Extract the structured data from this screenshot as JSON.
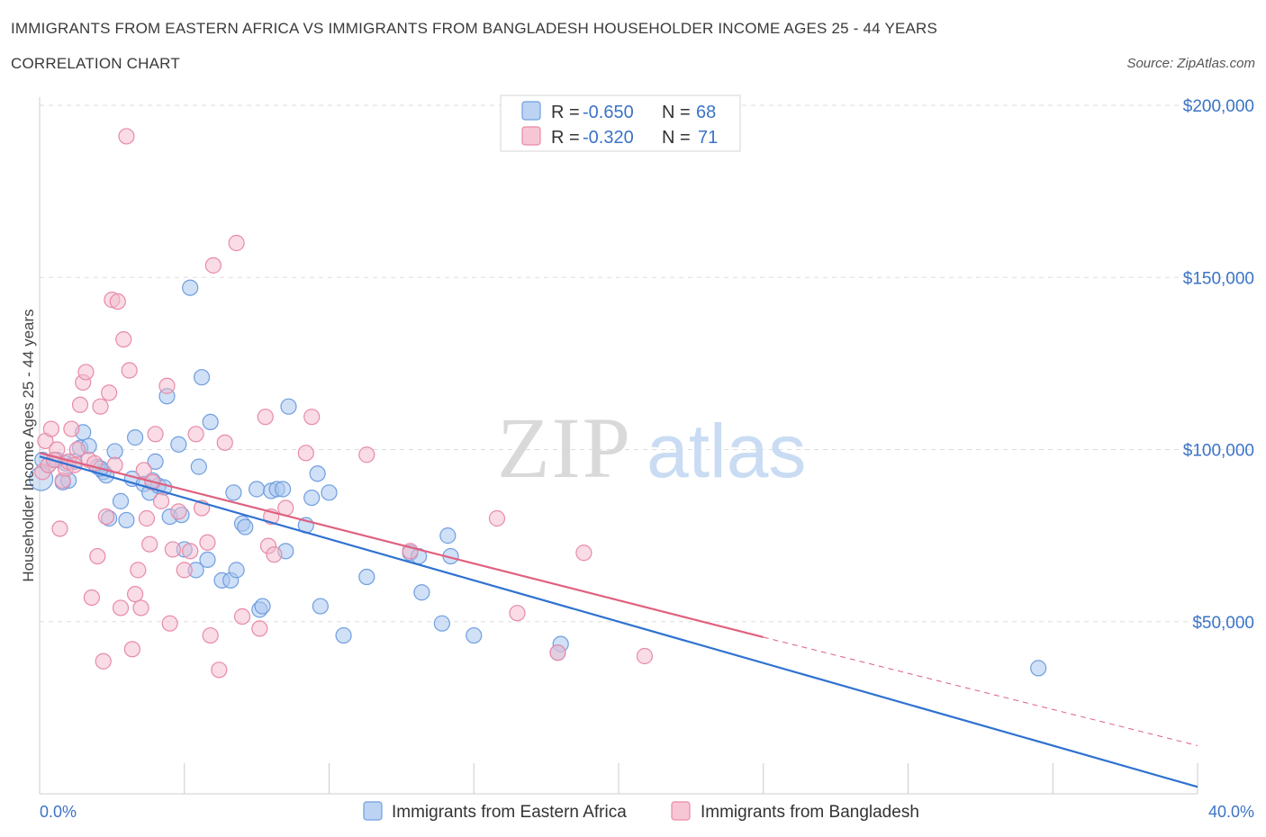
{
  "title": "IMMIGRANTS FROM EASTERN AFRICA VS IMMIGRANTS FROM BANGLADESH HOUSEHOLDER INCOME AGES 25 - 44 YEARS",
  "subtitle": "CORRELATION CHART",
  "source": "Source: ZipAtlas.com",
  "watermark": {
    "zip": "ZIP",
    "atlas": "atlas"
  },
  "colors": {
    "blue_fill": "#a9c6ee",
    "blue_stroke": "#6f9ee0",
    "blue_line": "#2f72d0",
    "pink_fill": "#f4b9cb",
    "pink_stroke": "#e88aa8",
    "pink_line": "#e0607f",
    "grid": "#dddddd",
    "tick_text": "#3b73c7"
  },
  "legend": {
    "rows": [
      {
        "r_label": "R =",
        "r_value": "-0.650",
        "n_label": "N =",
        "n_value": "68"
      },
      {
        "r_label": "R =",
        "r_value": "-0.320",
        "n_label": "N =",
        "n_value": "71"
      }
    ]
  },
  "bottom_legend": [
    "Immigrants from Eastern Africa",
    "Immigrants from Bangladesh"
  ],
  "chart_data": {
    "type": "scatter",
    "xlabel": "",
    "ylabel": "Householder Income Ages 25 - 44 years",
    "xlim": [
      0,
      40
    ],
    "ylim": [
      0,
      200000
    ],
    "x_tick_labels": [
      "0.0%",
      "40.0%"
    ],
    "y_tick_labels": [
      "$200,000",
      "$150,000",
      "$100,000",
      "$50,000"
    ],
    "y_ticks": [
      200000,
      150000,
      100000,
      50000
    ],
    "grid": true,
    "legend_position": "top-center",
    "series": [
      {
        "name": "Immigrants from Eastern Africa",
        "color": "#a9c6ee",
        "r": -0.65,
        "n": 68,
        "trend": {
          "x": [
            0,
            40
          ],
          "y": [
            98000,
            2000
          ]
        },
        "points": [
          [
            0.3,
            95500
          ],
          [
            0.6,
            97000
          ],
          [
            0.8,
            90500
          ],
          [
            1.0,
            91000
          ],
          [
            1.2,
            96500
          ],
          [
            1.4,
            100500
          ],
          [
            1.5,
            105000
          ],
          [
            1.7,
            101000
          ],
          [
            2.0,
            95000
          ],
          [
            2.2,
            93500
          ],
          [
            2.3,
            92500
          ],
          [
            2.4,
            80000
          ],
          [
            2.6,
            99500
          ],
          [
            2.8,
            85000
          ],
          [
            3.0,
            79500
          ],
          [
            3.2,
            91500
          ],
          [
            3.3,
            103500
          ],
          [
            3.6,
            90000
          ],
          [
            3.8,
            87500
          ],
          [
            4.0,
            96500
          ],
          [
            4.1,
            89500
          ],
          [
            4.3,
            89000
          ],
          [
            4.4,
            115500
          ],
          [
            4.5,
            80500
          ],
          [
            4.8,
            101500
          ],
          [
            4.9,
            81000
          ],
          [
            5.0,
            71000
          ],
          [
            5.2,
            147000
          ],
          [
            5.4,
            65000
          ],
          [
            5.5,
            95000
          ],
          [
            5.6,
            121000
          ],
          [
            5.8,
            68000
          ],
          [
            5.9,
            108000
          ],
          [
            6.3,
            62000
          ],
          [
            6.6,
            62000
          ],
          [
            6.7,
            87500
          ],
          [
            6.8,
            65000
          ],
          [
            7.0,
            78500
          ],
          [
            7.1,
            77500
          ],
          [
            7.5,
            88500
          ],
          [
            7.6,
            53500
          ],
          [
            7.7,
            54500
          ],
          [
            8.0,
            88000
          ],
          [
            8.2,
            88500
          ],
          [
            8.4,
            88500
          ],
          [
            8.5,
            70500
          ],
          [
            8.6,
            112500
          ],
          [
            9.2,
            78000
          ],
          [
            9.4,
            86000
          ],
          [
            9.6,
            93000
          ],
          [
            9.7,
            54500
          ],
          [
            10.0,
            87500
          ],
          [
            10.5,
            46000
          ],
          [
            11.3,
            63000
          ],
          [
            12.8,
            70000
          ],
          [
            13.1,
            69000
          ],
          [
            13.2,
            58500
          ],
          [
            13.9,
            49500
          ],
          [
            14.1,
            75000
          ],
          [
            14.2,
            69000
          ],
          [
            15.0,
            46000
          ],
          [
            18.0,
            43500
          ],
          [
            17.9,
            41000
          ],
          [
            34.5,
            36500
          ],
          [
            0.1,
            97000
          ],
          [
            0.9,
            96000
          ],
          [
            2.1,
            94500
          ],
          [
            3.9,
            91000
          ]
        ]
      },
      {
        "name": "Immigrants from Bangladesh",
        "color": "#f4b9cb",
        "r": -0.32,
        "n": 71,
        "trend": {
          "x": [
            0,
            25
          ],
          "y": [
            99000,
            45500
          ]
        },
        "trend_extension": {
          "x": [
            25,
            40
          ],
          "y": [
            45500,
            14000
          ]
        },
        "points": [
          [
            0.1,
            93500
          ],
          [
            0.2,
            102500
          ],
          [
            0.3,
            95500
          ],
          [
            0.4,
            106000
          ],
          [
            0.6,
            100000
          ],
          [
            0.7,
            77000
          ],
          [
            0.8,
            91000
          ],
          [
            0.9,
            94500
          ],
          [
            1.0,
            96500
          ],
          [
            1.1,
            106000
          ],
          [
            1.2,
            95500
          ],
          [
            1.3,
            100000
          ],
          [
            1.4,
            113000
          ],
          [
            1.5,
            119500
          ],
          [
            1.6,
            122500
          ],
          [
            1.7,
            97000
          ],
          [
            1.8,
            57000
          ],
          [
            2.0,
            69000
          ],
          [
            2.1,
            112500
          ],
          [
            2.2,
            38500
          ],
          [
            2.3,
            80500
          ],
          [
            2.4,
            116500
          ],
          [
            2.5,
            143500
          ],
          [
            2.6,
            95500
          ],
          [
            2.7,
            143000
          ],
          [
            2.8,
            54000
          ],
          [
            2.9,
            132000
          ],
          [
            3.0,
            191000
          ],
          [
            3.1,
            123000
          ],
          [
            3.2,
            42000
          ],
          [
            3.3,
            58000
          ],
          [
            3.4,
            65000
          ],
          [
            3.5,
            54000
          ],
          [
            3.6,
            94000
          ],
          [
            3.7,
            80000
          ],
          [
            3.8,
            72500
          ],
          [
            4.0,
            104500
          ],
          [
            4.2,
            85000
          ],
          [
            4.4,
            118500
          ],
          [
            4.5,
            49500
          ],
          [
            4.6,
            71000
          ],
          [
            4.8,
            82000
          ],
          [
            5.0,
            65000
          ],
          [
            5.2,
            70500
          ],
          [
            5.4,
            104500
          ],
          [
            5.6,
            83000
          ],
          [
            5.8,
            73000
          ],
          [
            5.9,
            46000
          ],
          [
            6.0,
            153500
          ],
          [
            6.2,
            36000
          ],
          [
            6.4,
            102000
          ],
          [
            6.8,
            160000
          ],
          [
            7.0,
            51500
          ],
          [
            7.6,
            48000
          ],
          [
            7.8,
            109500
          ],
          [
            7.9,
            72000
          ],
          [
            8.0,
            80500
          ],
          [
            8.1,
            69500
          ],
          [
            8.5,
            83000
          ],
          [
            9.2,
            99000
          ],
          [
            9.4,
            109500
          ],
          [
            11.3,
            98500
          ],
          [
            12.8,
            70500
          ],
          [
            15.8,
            80000
          ],
          [
            16.5,
            52500
          ],
          [
            17.9,
            41000
          ],
          [
            18.8,
            70000
          ],
          [
            20.9,
            40000
          ],
          [
            0.5,
            97000
          ],
          [
            1.9,
            96000
          ],
          [
            3.9,
            90500
          ]
        ]
      }
    ]
  }
}
